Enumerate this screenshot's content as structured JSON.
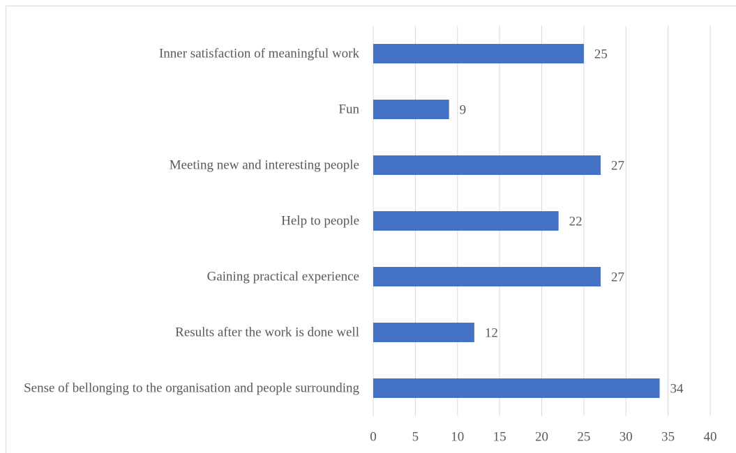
{
  "chart_data": {
    "type": "bar",
    "orientation": "horizontal",
    "categories": [
      "Inner satisfaction of meaningful work",
      "Fun",
      "Meeting new and interesting people",
      "Help to people",
      "Gaining practical experience",
      "Results after the work is done well",
      "Sense of bellonging to the organisation and people surrounding"
    ],
    "values": [
      25,
      9,
      27,
      22,
      27,
      12,
      34
    ],
    "color": "#4472c4",
    "xlim": [
      0,
      40
    ],
    "xticks": [
      0,
      5,
      10,
      15,
      20,
      25,
      30,
      35,
      40
    ],
    "grid": true
  }
}
